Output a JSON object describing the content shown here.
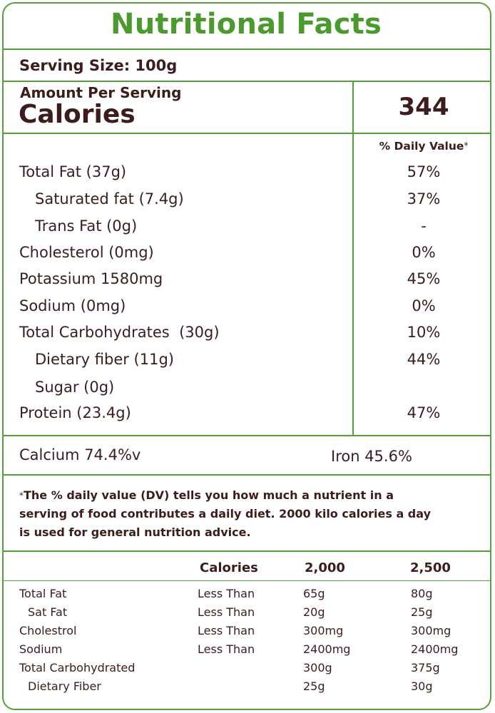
{
  "title": "Nutritional Facts",
  "serving_size": "Serving Size: 100g",
  "amount_per_serving": "Amount Per Serving",
  "calories_label": "Calories",
  "calories_value": "344",
  "daily_value_header": "% Daily Value",
  "daily_value_star": "*",
  "nutrients": [
    {
      "label": "Total Fat (37g)",
      "dv": "57%"
    },
    {
      "label": "Saturated fat (7.4g)",
      "dv": "37%"
    },
    {
      "label": "Trans Fat (0g)",
      "dv": "-"
    },
    {
      "label": "Cholesterol (0mg)",
      "dv": "0%"
    },
    {
      "label": "Potassium 1580mg",
      "dv": "45%"
    },
    {
      "label": "Sodium (0mg)",
      "dv": "0%"
    },
    {
      "label": "Total Carbohydrates  (30g)",
      "dv": "10%"
    },
    {
      "label": "Dietary fiber (11g)",
      "dv": "44%"
    },
    {
      "label": "Sugar (0g)",
      "dv": ""
    },
    {
      "label": "Protein (23.4g)",
      "dv": "47%"
    }
  ],
  "minerals": {
    "calcium": "Calcium 74.4%v",
    "iron": "Iron 45.6%"
  },
  "footnote": {
    "star": "*",
    "text": "The % daily value (DV) tells you how much a nutrient in a serving of food contributes a daily diet. 2000 kilo calories a day is used for general nutrition advice."
  },
  "reference_table": {
    "headers": [
      "Calories",
      "2,000",
      "2,500"
    ],
    "rows": [
      {
        "name": "Total Fat",
        "qualifier": "Less Than",
        "v2000": "65g",
        "v2500": "80g"
      },
      {
        "name": "Sat Fat",
        "qualifier": "Less Than",
        "v2000": "20g",
        "v2500": "25g"
      },
      {
        "name": "Cholestrol",
        "qualifier": "Less Than",
        "v2000": "300mg",
        "v2500": "300mg"
      },
      {
        "name": "Sodium",
        "qualifier": "Less Than",
        "v2000": "2400mg",
        "v2500": "2400mg"
      },
      {
        "name": "Total Carbohydrated",
        "qualifier": "",
        "v2000": "300g",
        "v2500": "375g"
      },
      {
        "name": "Dietary Fiber",
        "qualifier": "",
        "v2000": "25g",
        "v2500": "30g"
      }
    ]
  },
  "colors": {
    "title_green": "#4a9a2d",
    "border_green": "#5a9e3c",
    "text_brown": "#3b1d1c"
  }
}
